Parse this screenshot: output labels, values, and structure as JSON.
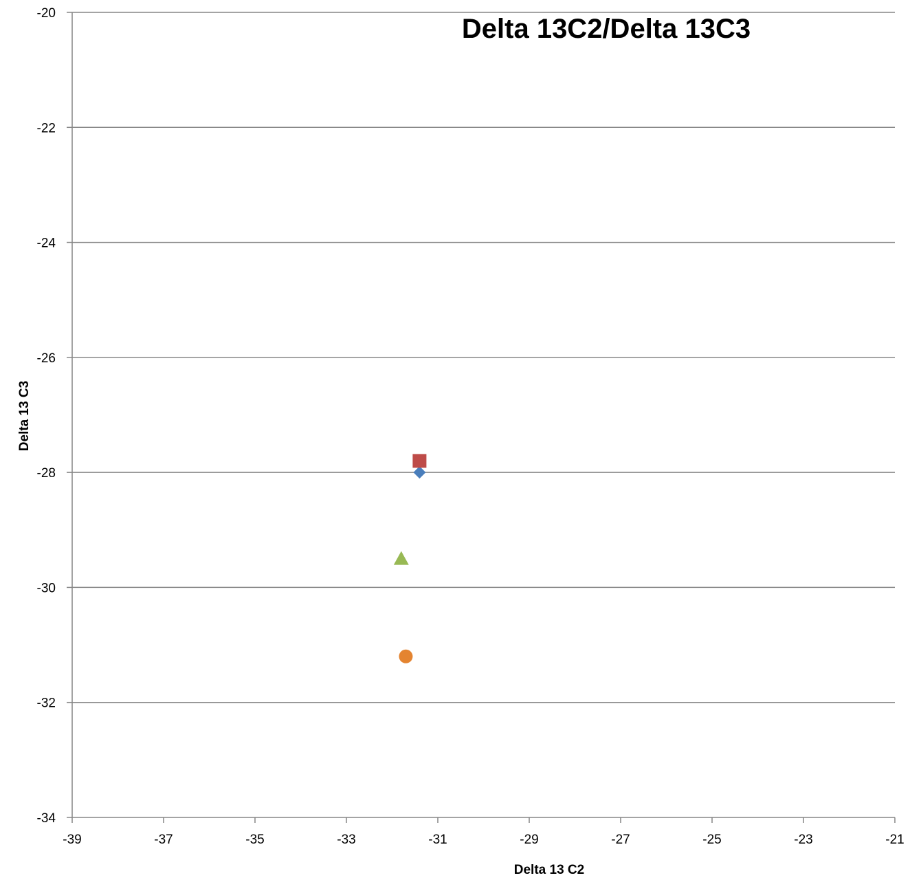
{
  "chart_data": {
    "type": "scatter",
    "title": "Delta 13C2/Delta 13C3",
    "xlabel": "Delta 13 C2",
    "ylabel": "Delta 13 C3",
    "xlim": [
      -39,
      -21
    ],
    "ylim": [
      -34,
      -20
    ],
    "xticks": [
      -39,
      -37,
      -35,
      -33,
      -31,
      -29,
      -27,
      -25,
      -23,
      -21
    ],
    "yticks": [
      -20,
      -22,
      -24,
      -26,
      -28,
      -30,
      -32,
      -34
    ],
    "grid": "horizontal",
    "legend": "none",
    "series": [
      {
        "marker": "diamond",
        "color": "#4a7ebb",
        "points": [
          {
            "x": -31.4,
            "y": -28.0
          }
        ]
      },
      {
        "marker": "square",
        "color": "#be4b48",
        "points": [
          {
            "x": -31.4,
            "y": -27.8
          }
        ]
      },
      {
        "marker": "triangle",
        "color": "#98b954",
        "points": [
          {
            "x": -31.8,
            "y": -29.5
          }
        ]
      },
      {
        "marker": "circle",
        "color": "#e48430",
        "points": [
          {
            "x": -31.7,
            "y": -31.2
          }
        ]
      }
    ]
  }
}
